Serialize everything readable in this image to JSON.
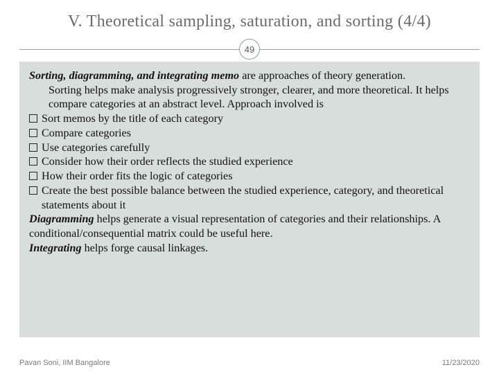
{
  "title": "V. Theoretical sampling, saturation, and sorting (4/4)",
  "pageNumber": "49",
  "lead": {
    "label": "Sorting, diagramming, and integrating memo",
    "rest": " are approaches of theory generation."
  },
  "p1": "Sorting helps make analysis progressively stronger, clearer, and more theoretical. It helps compare categories at an abstract level. Approach involved is",
  "bullets": [
    "Sort memos by the title of each category",
    "Compare categories",
    "Use categories carefully",
    "Consider how their order reflects the studied experience",
    "How their order fits the logic of categories",
    "Create the best possible balance between the studied experience, category, and theoretical statements about it"
  ],
  "diagramming": {
    "label": "Diagramming",
    "rest": " helps generate a visual representation of categories and their relationships. A conditional/consequential matrix could be useful here."
  },
  "integrating": {
    "label": "Integrating",
    "rest": " helps forge causal linkages."
  },
  "footer": {
    "author": "Pavan Soni, IIM Bangalore",
    "date": "11/23/2020"
  },
  "colors": {
    "title": "#6b6b6b",
    "contentBg": "#d8dedc",
    "divider": "#9aa0a0",
    "badgeBorder": "#8aa09a",
    "footer": "#7a7a7a"
  }
}
